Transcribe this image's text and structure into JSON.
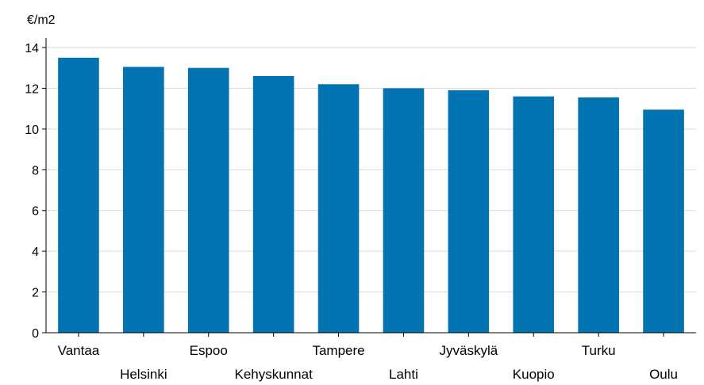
{
  "chart_data": {
    "type": "bar",
    "unit_label": "€/m2",
    "categories": [
      "Vantaa",
      "Helsinki",
      "Espoo",
      "Kehyskunnat",
      "Tampere",
      "Lahti",
      "Jyväskylä",
      "Kuopio",
      "Turku",
      "Oulu"
    ],
    "values": [
      13.5,
      13.05,
      13.0,
      12.6,
      12.2,
      12.0,
      11.9,
      11.6,
      11.55,
      10.95
    ],
    "ylim": [
      0,
      14
    ],
    "yticks": [
      0,
      2,
      4,
      6,
      8,
      10,
      12,
      14
    ],
    "ytick_labels": [
      "0",
      "2",
      "4",
      "6",
      "8",
      "10",
      "12",
      "14"
    ],
    "grid": true,
    "colors": {
      "bar": "#0073b0",
      "grid": "#d9d9d9",
      "axis": "#000000"
    }
  }
}
